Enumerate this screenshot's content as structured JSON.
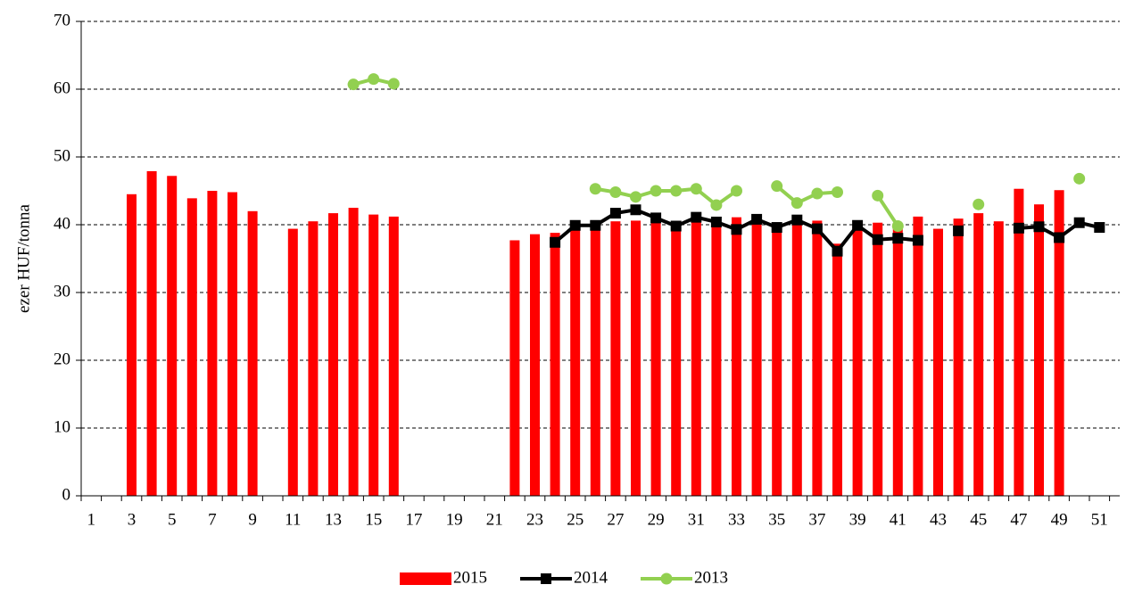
{
  "chart_data": {
    "type": "bar_line",
    "y_label": "ezer HUF/tonna",
    "categories": [
      "1",
      null,
      "3",
      null,
      "5",
      null,
      "7",
      null,
      "9",
      null,
      "11",
      null,
      "13",
      null,
      "15",
      null,
      "17",
      null,
      "19",
      null,
      "21",
      null,
      "23",
      null,
      "25",
      null,
      "27",
      null,
      "29",
      null,
      "31",
      null,
      "33",
      null,
      "35",
      null,
      "37",
      null,
      "39",
      null,
      "41",
      null,
      "43",
      null,
      "45",
      null,
      "47",
      null,
      "49",
      null,
      "51"
    ],
    "ylim": [
      0,
      70
    ],
    "yticks": [
      0,
      10,
      20,
      30,
      40,
      50,
      60,
      70
    ],
    "grid": true,
    "legend": "bottom",
    "series": [
      {
        "name": "2015",
        "kind": "bar",
        "color": "#ff0000",
        "values": [
          null,
          null,
          44.5,
          47.9,
          47.2,
          43.9,
          45.0,
          44.8,
          42.0,
          null,
          39.4,
          40.5,
          41.7,
          42.5,
          41.5,
          41.2,
          null,
          null,
          null,
          null,
          null,
          37.7,
          38.6,
          38.8,
          40.0,
          39.8,
          40.5,
          40.6,
          40.9,
          40.0,
          40.8,
          40.9,
          41.1,
          41.0,
          40.1,
          40.5,
          40.6,
          37.2,
          40.0,
          40.3,
          40.0,
          41.2,
          39.4,
          40.9,
          41.7,
          40.5,
          45.3,
          43.0,
          45.1,
          null,
          null
        ]
      },
      {
        "name": "2014",
        "kind": "line",
        "marker": "square",
        "color": "#000000",
        "values": [
          null,
          null,
          null,
          null,
          null,
          null,
          null,
          null,
          null,
          null,
          null,
          null,
          null,
          null,
          null,
          null,
          null,
          null,
          null,
          null,
          null,
          null,
          null,
          37.4,
          39.9,
          39.9,
          41.7,
          42.2,
          41.0,
          39.8,
          41.1,
          40.4,
          39.3,
          40.8,
          39.6,
          40.7,
          39.4,
          36.1,
          39.9,
          37.8,
          38.0,
          37.7,
          null,
          39.1,
          null,
          null,
          39.5,
          39.7,
          38.1,
          40.3,
          39.6
        ]
      },
      {
        "name": "2013",
        "kind": "line",
        "marker": "circle",
        "color": "#92d050",
        "values": [
          null,
          null,
          null,
          null,
          null,
          null,
          null,
          null,
          null,
          null,
          null,
          null,
          null,
          60.7,
          61.5,
          60.8,
          null,
          null,
          null,
          null,
          null,
          null,
          null,
          null,
          null,
          45.3,
          44.8,
          44.1,
          45.0,
          45.0,
          45.3,
          42.9,
          45.0,
          null,
          45.7,
          43.2,
          44.6,
          44.8,
          null,
          44.3,
          39.8,
          null,
          null,
          null,
          43.0,
          null,
          null,
          null,
          null,
          46.8,
          null
        ]
      }
    ]
  }
}
